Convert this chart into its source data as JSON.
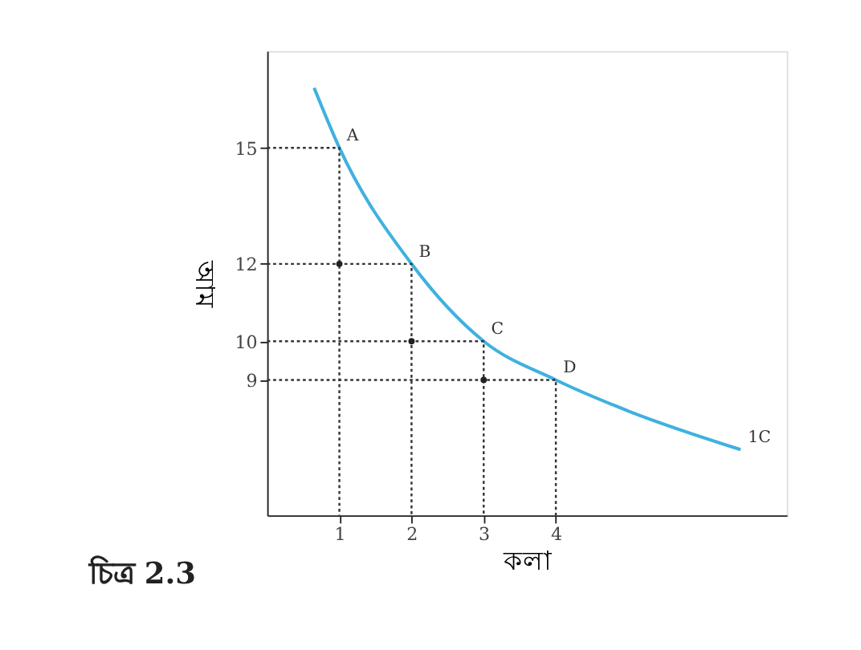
{
  "chart_data": {
    "type": "line",
    "xlabel": "কলা",
    "ylabel": "আম",
    "xlim": [
      0,
      7.2
    ],
    "ylim": [
      5.5,
      17.5
    ],
    "xticks": [
      1,
      2,
      3,
      4
    ],
    "yticks": [
      9,
      10,
      12,
      15
    ],
    "grid": false,
    "series": [
      {
        "color": "#3fb1e0",
        "x": [
          0.65,
          1,
          2,
          3,
          4,
          5,
          6.56
        ],
        "values": [
          16.55,
          15,
          12,
          10,
          9,
          8.2,
          7.2
        ],
        "line_style": "solid",
        "marker": "none"
      },
      {
        "type": "line",
        "color": "#333333",
        "line_style": "dotted",
        "x": [
          0,
          1,
          1
        ],
        "values": [
          15,
          15,
          5.5
        ]
      },
      {
        "type": "line",
        "color": "#333333",
        "line_style": "dotted",
        "x": [
          0,
          2,
          2
        ],
        "values": [
          12,
          12,
          5.5
        ]
      },
      {
        "type": "line",
        "color": "#333333",
        "line_style": "dotted",
        "x": [
          0,
          3,
          3
        ],
        "values": [
          10,
          10,
          5.5
        ]
      },
      {
        "type": "line",
        "color": "#333333",
        "line_style": "dotted",
        "x": [
          0,
          4,
          4
        ],
        "values": [
          9,
          9,
          5.5
        ]
      },
      {
        "type": "scatter",
        "color": "#222222",
        "marker": "circle",
        "x": [
          1,
          2,
          3
        ],
        "values": [
          12,
          10,
          9
        ]
      }
    ],
    "annotations": [
      {
        "text": "A",
        "x": 1,
        "y": 15
      },
      {
        "text": "B",
        "x": 2,
        "y": 12
      },
      {
        "text": "C",
        "x": 3,
        "y": 10
      },
      {
        "text": "D",
        "x": 4,
        "y": 9
      },
      {
        "text": "1C",
        "x": 6.56,
        "y": 7.2
      },
      "চিত্র 2.3"
    ]
  }
}
